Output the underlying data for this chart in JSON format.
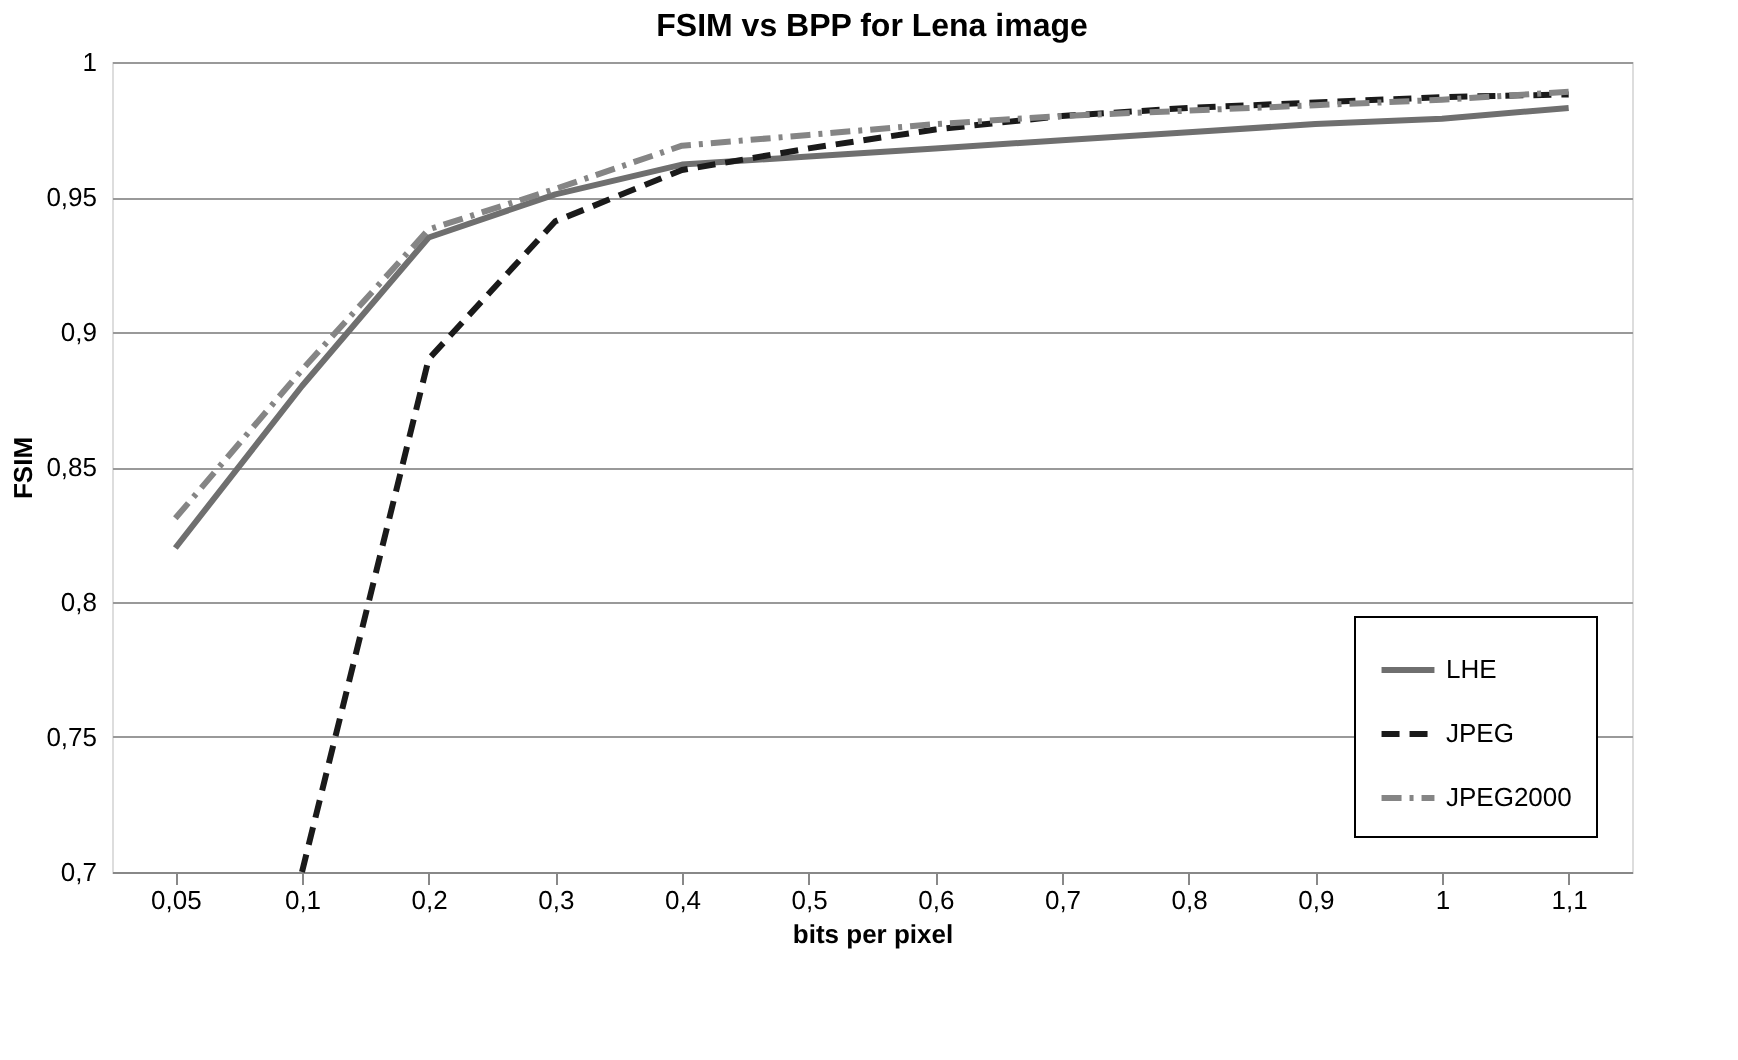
{
  "chart_data": {
    "type": "line",
    "title": "FSIM vs BPP for Lena image",
    "xlabel": "bits per pixel",
    "ylabel": "FSIM",
    "categories": [
      "0,05",
      "0,1",
      "0,2",
      "0,3",
      "0,4",
      "0,5",
      "0,6",
      "0,7",
      "0,8",
      "0,9",
      "1",
      "1,1"
    ],
    "series": [
      {
        "name": "LHE",
        "color": "#6f6f6f",
        "line_style": "solid",
        "values": [
          0.82,
          0.88,
          0.935,
          0.951,
          0.962,
          0.965,
          0.968,
          0.971,
          0.974,
          0.977,
          0.979,
          0.983
        ]
      },
      {
        "name": "JPEG",
        "color": "#1a1a1a",
        "line_style": "dashed",
        "values": [
          null,
          0.7,
          0.89,
          0.941,
          0.96,
          0.968,
          0.975,
          0.98,
          0.983,
          0.985,
          0.987,
          0.988
        ]
      },
      {
        "name": "JPEG2000",
        "color": "#858585",
        "line_style": "dashdot",
        "values": [
          0.831,
          0.886,
          0.938,
          0.953,
          0.969,
          0.973,
          0.977,
          0.98,
          0.982,
          0.984,
          0.986,
          0.989
        ]
      }
    ],
    "ylim": [
      0.7,
      1
    ],
    "yticks": [
      {
        "value": 0.7,
        "label": "0,7"
      },
      {
        "value": 0.75,
        "label": "0,75"
      },
      {
        "value": 0.8,
        "label": "0,8"
      },
      {
        "value": 0.85,
        "label": "0,85"
      },
      {
        "value": 0.9,
        "label": "0,9"
      },
      {
        "value": 0.95,
        "label": "0,95"
      },
      {
        "value": 1,
        "label": "1"
      }
    ],
    "grid": "y",
    "legend": "bottom right",
    "marker": "none"
  }
}
